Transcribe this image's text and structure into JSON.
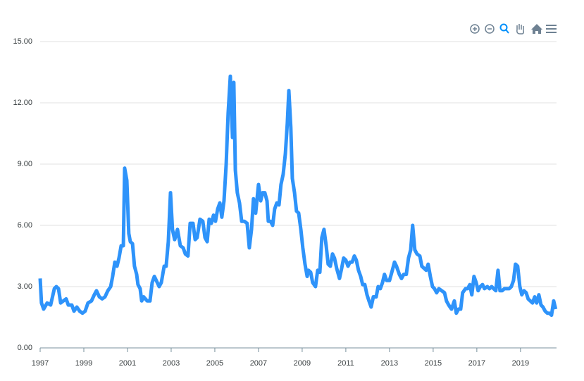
{
  "chart_data": {
    "type": "line",
    "x": [
      1997.0,
      1997.06,
      1997.16,
      1997.32,
      1997.48,
      1997.65,
      1997.74,
      1997.84,
      1997.94,
      1998.06,
      1998.19,
      1998.29,
      1998.45,
      1998.55,
      1998.68,
      1998.81,
      1998.94,
      1999.06,
      1999.19,
      1999.35,
      1999.48,
      1999.58,
      1999.71,
      1999.84,
      1999.97,
      2000.1,
      2000.23,
      2000.32,
      2000.42,
      2000.52,
      2000.61,
      2000.71,
      2000.81,
      2000.87,
      2000.97,
      2001.06,
      2001.13,
      2001.23,
      2001.32,
      2001.42,
      2001.48,
      2001.58,
      2001.65,
      2001.74,
      2001.9,
      2002.03,
      2002.13,
      2002.23,
      2002.32,
      2002.45,
      2002.55,
      2002.68,
      2002.77,
      2002.87,
      2002.97,
      2003.06,
      2003.16,
      2003.29,
      2003.42,
      2003.55,
      2003.65,
      2003.77,
      2003.87,
      2004.0,
      2004.1,
      2004.19,
      2004.32,
      2004.45,
      2004.55,
      2004.65,
      2004.74,
      2004.84,
      2004.94,
      2005.03,
      2005.13,
      2005.23,
      2005.32,
      2005.42,
      2005.52,
      2005.61,
      2005.71,
      2005.81,
      2005.87,
      2005.94,
      2006.03,
      2006.13,
      2006.23,
      2006.35,
      2006.48,
      2006.58,
      2006.68,
      2006.77,
      2006.87,
      2007.0,
      2007.1,
      2007.19,
      2007.29,
      2007.39,
      2007.45,
      2007.55,
      2007.65,
      2007.74,
      2007.84,
      2007.94,
      2008.03,
      2008.13,
      2008.23,
      2008.32,
      2008.39,
      2008.48,
      2008.55,
      2008.65,
      2008.74,
      2008.84,
      2008.94,
      2009.03,
      2009.13,
      2009.23,
      2009.29,
      2009.39,
      2009.48,
      2009.61,
      2009.71,
      2009.81,
      2009.9,
      2010.0,
      2010.1,
      2010.19,
      2010.29,
      2010.39,
      2010.48,
      2010.58,
      2010.71,
      2010.81,
      2010.9,
      2011.0,
      2011.1,
      2011.19,
      2011.29,
      2011.39,
      2011.48,
      2011.58,
      2011.68,
      2011.77,
      2011.87,
      2011.97,
      2012.06,
      2012.16,
      2012.26,
      2012.39,
      2012.48,
      2012.58,
      2012.68,
      2012.77,
      2012.87,
      2013.0,
      2013.13,
      2013.23,
      2013.32,
      2013.45,
      2013.55,
      2013.65,
      2013.77,
      2013.87,
      2013.97,
      2014.06,
      2014.16,
      2014.26,
      2014.39,
      2014.48,
      2014.58,
      2014.68,
      2014.77,
      2014.87,
      2014.97,
      2015.06,
      2015.16,
      2015.26,
      2015.39,
      2015.52,
      2015.61,
      2015.71,
      2015.84,
      2015.97,
      2016.06,
      2016.16,
      2016.26,
      2016.35,
      2016.48,
      2016.58,
      2016.68,
      2016.77,
      2016.87,
      2016.97,
      2017.06,
      2017.16,
      2017.26,
      2017.35,
      2017.48,
      2017.58,
      2017.68,
      2017.77,
      2017.87,
      2017.97,
      2018.06,
      2018.16,
      2018.26,
      2018.39,
      2018.48,
      2018.58,
      2018.68,
      2018.77,
      2018.87,
      2018.97,
      2019.06,
      2019.16,
      2019.26,
      2019.35,
      2019.45,
      2019.55,
      2019.65,
      2019.74,
      2019.84,
      2019.94,
      2020.03,
      2020.13,
      2020.23,
      2020.32,
      2020.42,
      2020.52,
      2020.61
    ],
    "series": [
      {
        "color": "#2e93fa",
        "values": [
          3.4,
          2.2,
          1.9,
          2.2,
          2.1,
          2.9,
          3.0,
          2.9,
          2.2,
          2.3,
          2.4,
          2.1,
          2.1,
          1.8,
          2.0,
          1.8,
          1.7,
          1.8,
          2.2,
          2.3,
          2.6,
          2.8,
          2.5,
          2.4,
          2.5,
          2.8,
          3.0,
          3.5,
          4.2,
          4.0,
          4.4,
          5.0,
          5.0,
          8.8,
          8.2,
          5.6,
          5.2,
          5.1,
          4.0,
          3.6,
          3.1,
          2.9,
          2.3,
          2.5,
          2.3,
          2.3,
          3.2,
          3.5,
          3.3,
          3.0,
          3.2,
          4.0,
          4.0,
          5.2,
          7.6,
          5.8,
          5.3,
          5.8,
          5.0,
          4.9,
          4.6,
          4.5,
          6.1,
          6.1,
          5.3,
          5.4,
          6.3,
          6.2,
          5.4,
          5.2,
          6.3,
          6.1,
          6.5,
          6.2,
          6.8,
          7.1,
          6.4,
          7.2,
          9.0,
          11.5,
          13.3,
          10.3,
          13.0,
          8.7,
          7.6,
          7.1,
          6.2,
          6.2,
          6.1,
          4.9,
          5.8,
          7.3,
          6.6,
          8.0,
          7.2,
          7.6,
          7.6,
          7.2,
          6.2,
          6.2,
          6.0,
          6.8,
          7.1,
          7.0,
          8.0,
          8.5,
          9.5,
          11.0,
          12.6,
          10.8,
          8.3,
          7.6,
          6.7,
          6.6,
          5.8,
          4.9,
          4.1,
          3.5,
          3.8,
          3.7,
          3.2,
          3.0,
          3.8,
          3.7,
          5.4,
          5.8,
          5.0,
          4.1,
          4.0,
          4.6,
          4.4,
          3.9,
          3.4,
          3.9,
          4.4,
          4.3,
          4.0,
          4.2,
          4.2,
          4.5,
          4.3,
          3.8,
          3.5,
          3.1,
          3.1,
          2.6,
          2.3,
          2.0,
          2.5,
          2.5,
          3.0,
          2.9,
          3.2,
          3.6,
          3.3,
          3.3,
          3.8,
          4.2,
          4.0,
          3.6,
          3.4,
          3.6,
          3.6,
          4.4,
          4.8,
          6.0,
          4.8,
          4.6,
          4.5,
          4.0,
          3.9,
          3.8,
          4.1,
          3.5,
          3.0,
          2.9,
          2.7,
          2.9,
          2.8,
          2.7,
          2.3,
          2.1,
          1.9,
          2.3,
          1.7,
          1.9,
          1.9,
          2.7,
          2.9,
          2.9,
          3.1,
          2.6,
          3.5,
          3.2,
          2.8,
          3.0,
          3.1,
          2.9,
          3.0,
          2.9,
          3.0,
          2.9,
          2.8,
          3.8,
          2.8,
          2.8,
          2.9,
          2.9,
          2.9,
          3.0,
          3.3,
          4.1,
          4.0,
          3.0,
          2.6,
          2.8,
          2.7,
          2.4,
          2.3,
          2.2,
          2.5,
          2.2,
          2.6,
          2.1,
          2.0,
          1.8,
          1.7,
          1.7,
          1.6,
          2.3,
          1.9
        ]
      }
    ],
    "xlim": [
      1997,
      2020.65
    ],
    "xticks": [
      1997,
      1999,
      2001,
      2003,
      2005,
      2007,
      2009,
      2011,
      2013,
      2015,
      2017,
      2019
    ],
    "ylim": [
      0,
      15
    ],
    "yticks": [
      {
        "value": 0,
        "label": "0.00"
      },
      {
        "value": 3,
        "label": "3.00"
      },
      {
        "value": 6,
        "label": "6.00"
      },
      {
        "value": 9,
        "label": "9.00"
      },
      {
        "value": 12,
        "label": "12.00"
      },
      {
        "value": 15,
        "label": "15.00"
      }
    ],
    "grid": true
  }
}
